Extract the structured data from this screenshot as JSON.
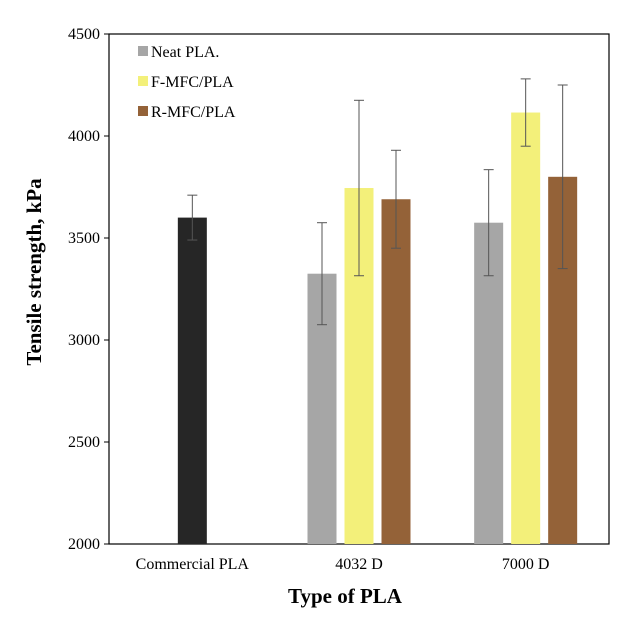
{
  "chart_data": {
    "type": "bar",
    "title": "",
    "xlabel": "Type of PLA",
    "ylabel": "Tensile strength, kPa",
    "ylim": [
      2000,
      4500
    ],
    "yticks": [
      2000,
      2500,
      3000,
      3500,
      4000,
      4500
    ],
    "grid": false,
    "legend_position": "top-left",
    "categories": [
      "Commercial PLA",
      "4032 D",
      "7000 D"
    ],
    "commercial": {
      "value": 3600,
      "error": 110,
      "color": "#262626"
    },
    "series": [
      {
        "name": "Neat PLA.",
        "color": "#a6a6a6",
        "values": [
          null,
          3325,
          3575
        ],
        "errors": [
          null,
          250,
          260
        ]
      },
      {
        "name": "F-MFC/PLA",
        "color": "#f3f07a",
        "values": [
          null,
          3745,
          4115
        ],
        "errors": [
          null,
          430,
          165
        ]
      },
      {
        "name": "R-MFC/PLA",
        "color": "#946238",
        "values": [
          null,
          3690,
          3800
        ],
        "errors": [
          null,
          240,
          450
        ]
      }
    ]
  }
}
